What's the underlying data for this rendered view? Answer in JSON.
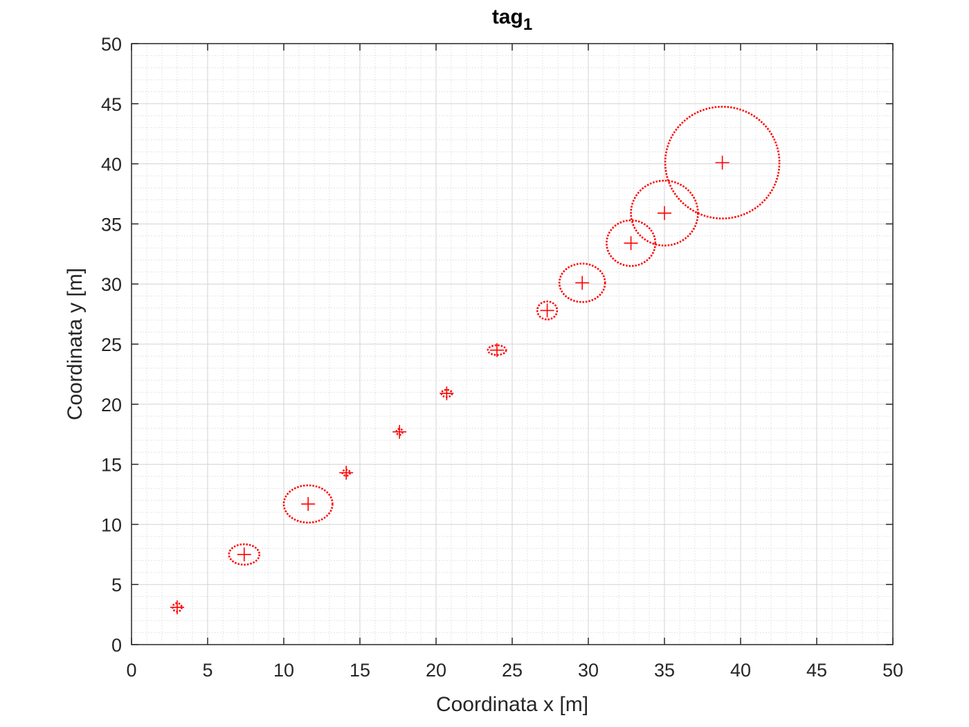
{
  "chart_data": {
    "type": "scatter",
    "title": "tag",
    "title_subscript": "1",
    "xlabel": "Coordinata x [m]",
    "ylabel": "Coordinata y [m]",
    "xlim": [
      0,
      50
    ],
    "ylim": [
      0,
      50
    ],
    "xticks": [
      0,
      5,
      10,
      15,
      20,
      25,
      30,
      35,
      40,
      45,
      50
    ],
    "yticks": [
      0,
      5,
      10,
      15,
      20,
      25,
      30,
      35,
      40,
      45,
      50
    ],
    "grid": true,
    "minor_grid": true,
    "marker": "+",
    "color": "#ff0000",
    "ellipse_style": "dotted",
    "points": [
      {
        "x": 3.0,
        "y": 3.1,
        "rx": 0.3,
        "ry": 0.35
      },
      {
        "x": 7.4,
        "y": 7.5,
        "rx": 1.0,
        "ry": 0.85
      },
      {
        "x": 11.6,
        "y": 11.7,
        "rx": 1.6,
        "ry": 1.55
      },
      {
        "x": 14.1,
        "y": 14.3,
        "rx": 0.25,
        "ry": 0.25
      },
      {
        "x": 17.6,
        "y": 17.7,
        "rx": 0.2,
        "ry": 0.25
      },
      {
        "x": 20.7,
        "y": 20.9,
        "rx": 0.35,
        "ry": 0.3
      },
      {
        "x": 24.0,
        "y": 24.5,
        "rx": 0.6,
        "ry": 0.4
      },
      {
        "x": 27.3,
        "y": 27.8,
        "rx": 0.65,
        "ry": 0.75
      },
      {
        "x": 29.6,
        "y": 30.1,
        "rx": 1.5,
        "ry": 1.6
      },
      {
        "x": 32.8,
        "y": 33.4,
        "rx": 1.6,
        "ry": 1.9
      },
      {
        "x": 35.0,
        "y": 35.9,
        "rx": 2.2,
        "ry": 2.7
      },
      {
        "x": 38.8,
        "y": 40.1,
        "rx": 3.75,
        "ry": 4.65
      }
    ]
  }
}
